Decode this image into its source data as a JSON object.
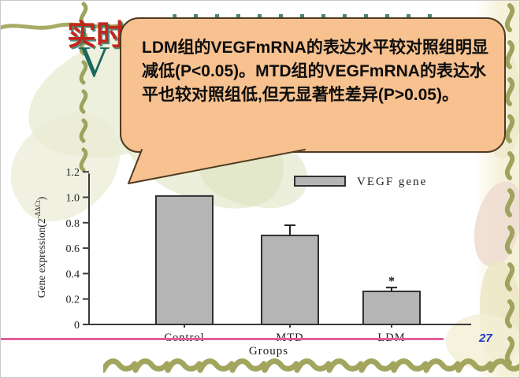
{
  "slide": {
    "title": {
      "visible_line1": "实时",
      "visible_line2": "V",
      "color": "#c3271b",
      "shadow_color": "#1a685c"
    },
    "page_number": "27",
    "page_number_color": "#1f35cc",
    "accent_line_color": "#e0609a"
  },
  "callout": {
    "text": "LDM组的VEGFmRNA的表达水平较对照组明显减低(P<0.05)。MTD组的VEGFmRNA的表达水平也较对照组低,但无显著性差异(P>0.05)。",
    "fill": "#f7c190",
    "border_color": "#4e3b20"
  },
  "chart_data": {
    "type": "bar",
    "categories": [
      "Control",
      "MTD",
      "LDM"
    ],
    "series": [
      {
        "name": "VEGF gene",
        "values": [
          1.01,
          0.7,
          0.26
        ],
        "errors_plus": [
          0,
          0.08,
          0.03
        ]
      }
    ],
    "annotations": [
      {
        "category": "LDM",
        "text": "*",
        "at_value": 0.31
      }
    ],
    "xlabel": "Groups",
    "ylabel": {
      "base": "Gene expression(2",
      "superscript": "-ΔΔCt",
      "close": ")"
    },
    "ytick_labels": [
      "0",
      "0.2",
      "0.4",
      "0.6",
      "0.8",
      "1.0",
      "1.2"
    ],
    "ylim": [
      0,
      1.2
    ],
    "grid": false,
    "legend": {
      "label": "VEGF gene",
      "position": "top-right"
    },
    "bar_fill": "#b5b5b5",
    "bar_border": "#303030",
    "axis_color": "#3a3a3a",
    "text_color": "#1d1d1d"
  }
}
